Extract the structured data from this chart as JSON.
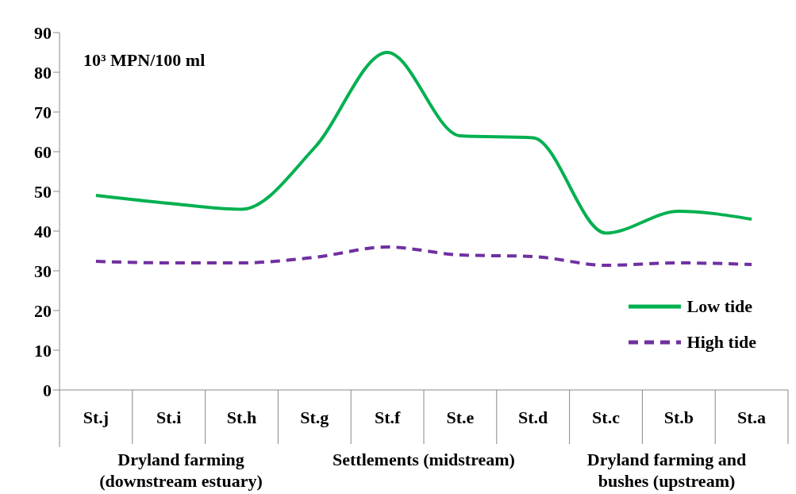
{
  "chart_data": {
    "type": "line",
    "ylabel": "10³ MPN/100 ml",
    "categories": [
      "St.j",
      "St.i",
      "St.h",
      "St.g",
      "St.f",
      "St.e",
      "St.d",
      "St.c",
      "St.b",
      "St.a"
    ],
    "series": [
      {
        "name": "Low tide",
        "color": "#00b050",
        "line_style": "solid",
        "values": [
          49,
          47,
          45.5,
          61,
          85,
          64,
          63.5,
          39.5,
          45,
          43
        ]
      },
      {
        "name": "High tide",
        "color": "#7030a0",
        "line_style": "dashed",
        "values": [
          32.4,
          32,
          32,
          33.4,
          36,
          34,
          33.6,
          31.4,
          32,
          31.6
        ]
      }
    ],
    "ylim": [
      0,
      90
    ],
    "yticks": [
      0,
      10,
      20,
      30,
      40,
      50,
      60,
      70,
      80,
      90
    ],
    "grid": false,
    "legend": "right",
    "marker": "none",
    "annotations": [
      "Dryland farming (downstream estuary)",
      "Settlements (midstream)",
      "Dryland farming and bushes (upstream)"
    ]
  }
}
